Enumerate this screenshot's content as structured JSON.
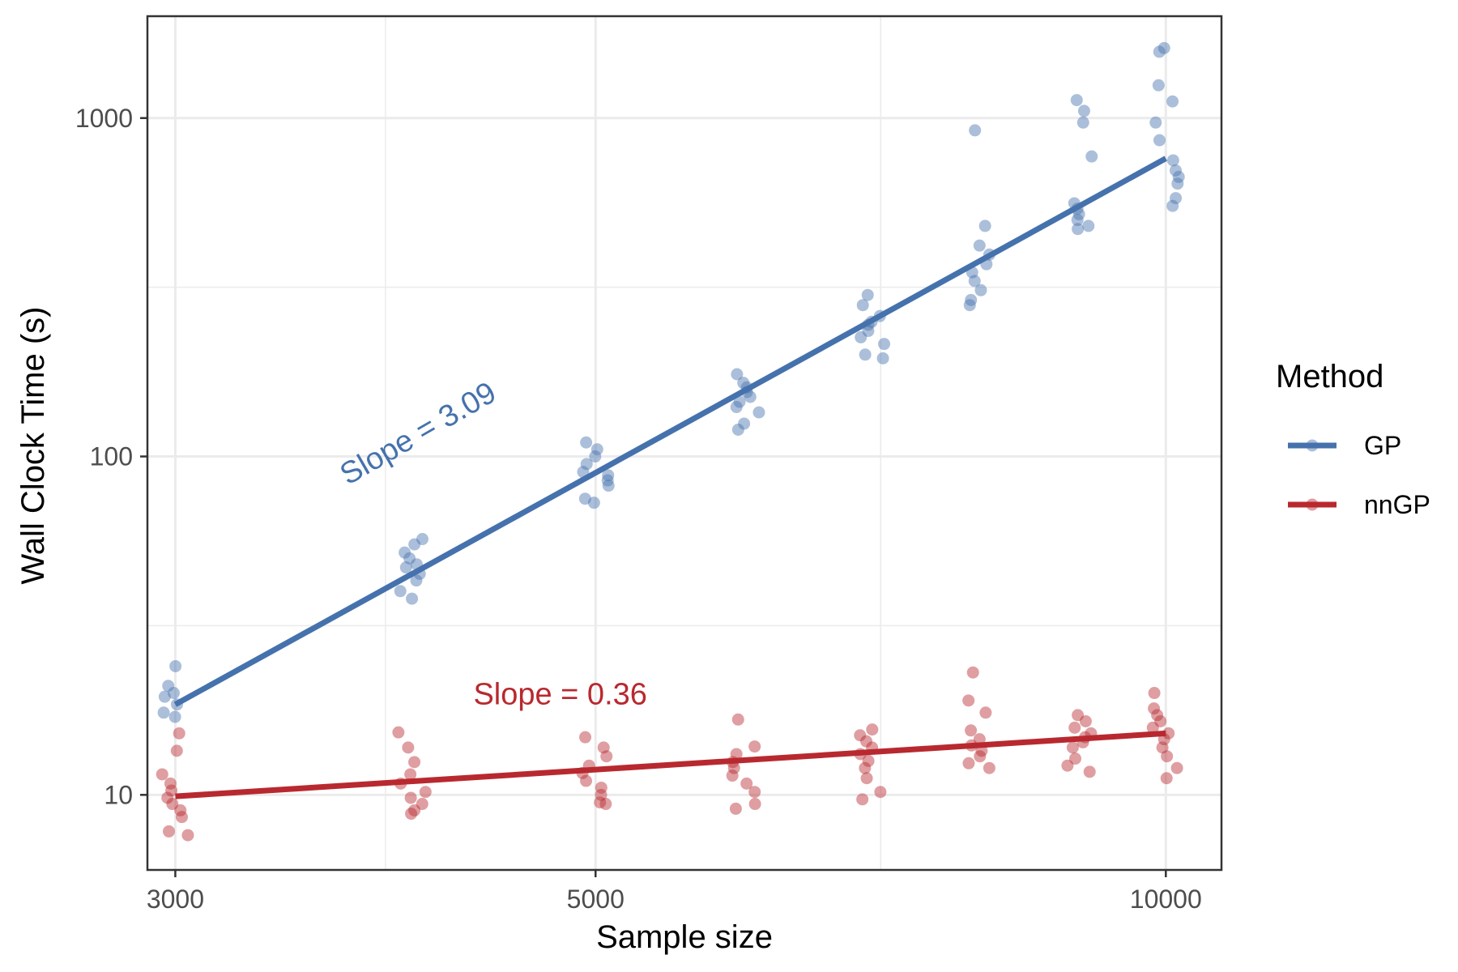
{
  "chart_data": {
    "type": "scatter",
    "xlabel": "Sample size",
    "ylabel": "Wall Clock Time (s)",
    "x_scale": "log",
    "y_scale": "log",
    "xlim": [
      2900,
      10700
    ],
    "ylim": [
      6,
      2000
    ],
    "x_ticks": [
      3000,
      5000,
      10000
    ],
    "x_tick_labels": [
      "3000",
      "5000",
      "10000"
    ],
    "y_ticks": [
      10,
      100,
      1000
    ],
    "y_tick_labels": [
      "10",
      "100",
      "1000"
    ],
    "grid": true,
    "legend": {
      "title": "Method",
      "placement": "right"
    },
    "colors": {
      "GP": "#4572ad",
      "nnGP": "#b8292f"
    },
    "series": [
      {
        "name": "GP",
        "fit_line": {
          "x": [
            3000,
            10000
          ],
          "y": [
            18.5,
            760
          ]
        },
        "points": [
          [
            3000,
            17
          ],
          [
            3000,
            18.5
          ],
          [
            3000,
            19.5
          ],
          [
            3000,
            21
          ],
          [
            3000,
            20
          ],
          [
            3000,
            24
          ],
          [
            3000,
            17.5
          ],
          [
            4000,
            57
          ],
          [
            4000,
            55
          ],
          [
            4000,
            50
          ],
          [
            4000,
            47
          ],
          [
            4000,
            45
          ],
          [
            4000,
            43
          ],
          [
            4000,
            40
          ],
          [
            4000,
            38
          ],
          [
            4000,
            52
          ],
          [
            4000,
            48
          ],
          [
            5000,
            110
          ],
          [
            5000,
            105
          ],
          [
            5000,
            100
          ],
          [
            5000,
            95
          ],
          [
            5000,
            90
          ],
          [
            5000,
            85
          ],
          [
            5000,
            82
          ],
          [
            5000,
            75
          ],
          [
            5000,
            73
          ],
          [
            5000,
            88
          ],
          [
            6000,
            175
          ],
          [
            6000,
            165
          ],
          [
            6000,
            155
          ],
          [
            6000,
            150
          ],
          [
            6000,
            145
          ],
          [
            6000,
            140
          ],
          [
            6000,
            135
          ],
          [
            6000,
            125
          ],
          [
            6000,
            120
          ],
          [
            6000,
            160
          ],
          [
            7000,
            300
          ],
          [
            7000,
            280
          ],
          [
            7000,
            260
          ],
          [
            7000,
            245
          ],
          [
            7000,
            235
          ],
          [
            7000,
            225
          ],
          [
            7000,
            215
          ],
          [
            7000,
            200
          ],
          [
            7000,
            195
          ],
          [
            7000,
            250
          ],
          [
            8000,
            920
          ],
          [
            8000,
            480
          ],
          [
            8000,
            420
          ],
          [
            8000,
            395
          ],
          [
            8000,
            370
          ],
          [
            8000,
            350
          ],
          [
            8000,
            330
          ],
          [
            8000,
            310
          ],
          [
            8000,
            290
          ],
          [
            8000,
            280
          ],
          [
            9000,
            1130
          ],
          [
            9000,
            1050
          ],
          [
            9000,
            970
          ],
          [
            9000,
            770
          ],
          [
            9000,
            560
          ],
          [
            9000,
            540
          ],
          [
            9000,
            520
          ],
          [
            9000,
            500
          ],
          [
            9000,
            480
          ],
          [
            9000,
            470
          ],
          [
            10000,
            1610
          ],
          [
            10000,
            1570
          ],
          [
            10000,
            1250
          ],
          [
            10000,
            1120
          ],
          [
            10000,
            970
          ],
          [
            10000,
            860
          ],
          [
            10000,
            750
          ],
          [
            10000,
            700
          ],
          [
            10000,
            670
          ],
          [
            10000,
            640
          ],
          [
            10000,
            580
          ],
          [
            10000,
            550
          ]
        ]
      },
      {
        "name": "nnGP",
        "fit_line": {
          "x": [
            3000,
            10000
          ],
          "y": [
            9.9,
            15.2
          ]
        },
        "points": [
          [
            3000,
            15.2
          ],
          [
            3000,
            13.5
          ],
          [
            3000,
            11.5
          ],
          [
            3000,
            10.8
          ],
          [
            3000,
            10.3
          ],
          [
            3000,
            9.8
          ],
          [
            3000,
            9.4
          ],
          [
            3000,
            9
          ],
          [
            3000,
            8.6
          ],
          [
            3000,
            7.8
          ],
          [
            3000,
            7.6
          ],
          [
            4000,
            15.3
          ],
          [
            4000,
            13.8
          ],
          [
            4000,
            12.5
          ],
          [
            4000,
            11.5
          ],
          [
            4000,
            10.8
          ],
          [
            4000,
            10.2
          ],
          [
            4000,
            9.8
          ],
          [
            4000,
            9.4
          ],
          [
            4000,
            9
          ],
          [
            4000,
            8.8
          ],
          [
            5000,
            14.8
          ],
          [
            5000,
            13.8
          ],
          [
            5000,
            13
          ],
          [
            5000,
            12.2
          ],
          [
            5000,
            11.6
          ],
          [
            5000,
            11
          ],
          [
            5000,
            10.5
          ],
          [
            5000,
            10
          ],
          [
            5000,
            9.5
          ],
          [
            5000,
            9.4
          ],
          [
            6000,
            16.7
          ],
          [
            6000,
            13.9
          ],
          [
            6000,
            13.2
          ],
          [
            6000,
            12.5
          ],
          [
            6000,
            12
          ],
          [
            6000,
            11.4
          ],
          [
            6000,
            10.8
          ],
          [
            6000,
            10.2
          ],
          [
            6000,
            9.4
          ],
          [
            6000,
            9.1
          ],
          [
            7000,
            15.6
          ],
          [
            7000,
            15
          ],
          [
            7000,
            14.4
          ],
          [
            7000,
            13.8
          ],
          [
            7000,
            13.2
          ],
          [
            7000,
            12.6
          ],
          [
            7000,
            12
          ],
          [
            7000,
            11.2
          ],
          [
            7000,
            10.2
          ],
          [
            7000,
            9.7
          ],
          [
            8000,
            23
          ],
          [
            8000,
            19
          ],
          [
            8000,
            17.5
          ],
          [
            8000,
            15.5
          ],
          [
            8000,
            14.6
          ],
          [
            8000,
            14
          ],
          [
            8000,
            13.5
          ],
          [
            8000,
            13
          ],
          [
            8000,
            12.4
          ],
          [
            8000,
            12
          ],
          [
            9000,
            17.2
          ],
          [
            9000,
            16.5
          ],
          [
            9000,
            15.8
          ],
          [
            9000,
            15.2
          ],
          [
            9000,
            14.8
          ],
          [
            9000,
            14.3
          ],
          [
            9000,
            13.8
          ],
          [
            9000,
            12.8
          ],
          [
            9000,
            12.2
          ],
          [
            9000,
            11.7
          ],
          [
            10000,
            20
          ],
          [
            10000,
            18
          ],
          [
            10000,
            17.2
          ],
          [
            10000,
            16.5
          ],
          [
            10000,
            15.8
          ],
          [
            10000,
            15.2
          ],
          [
            10000,
            14.6
          ],
          [
            10000,
            13.8
          ],
          [
            10000,
            13
          ],
          [
            10000,
            12
          ],
          [
            10000,
            11.2
          ]
        ]
      }
    ],
    "annotations": [
      {
        "text": "Slope = 3.09",
        "series": "GP",
        "x": 3700,
        "y": 82,
        "angle_deg": -30
      },
      {
        "text": "Slope = 0.36",
        "series": "nnGP",
        "x": 4310,
        "y": 18.5,
        "angle_deg": 0
      }
    ]
  }
}
